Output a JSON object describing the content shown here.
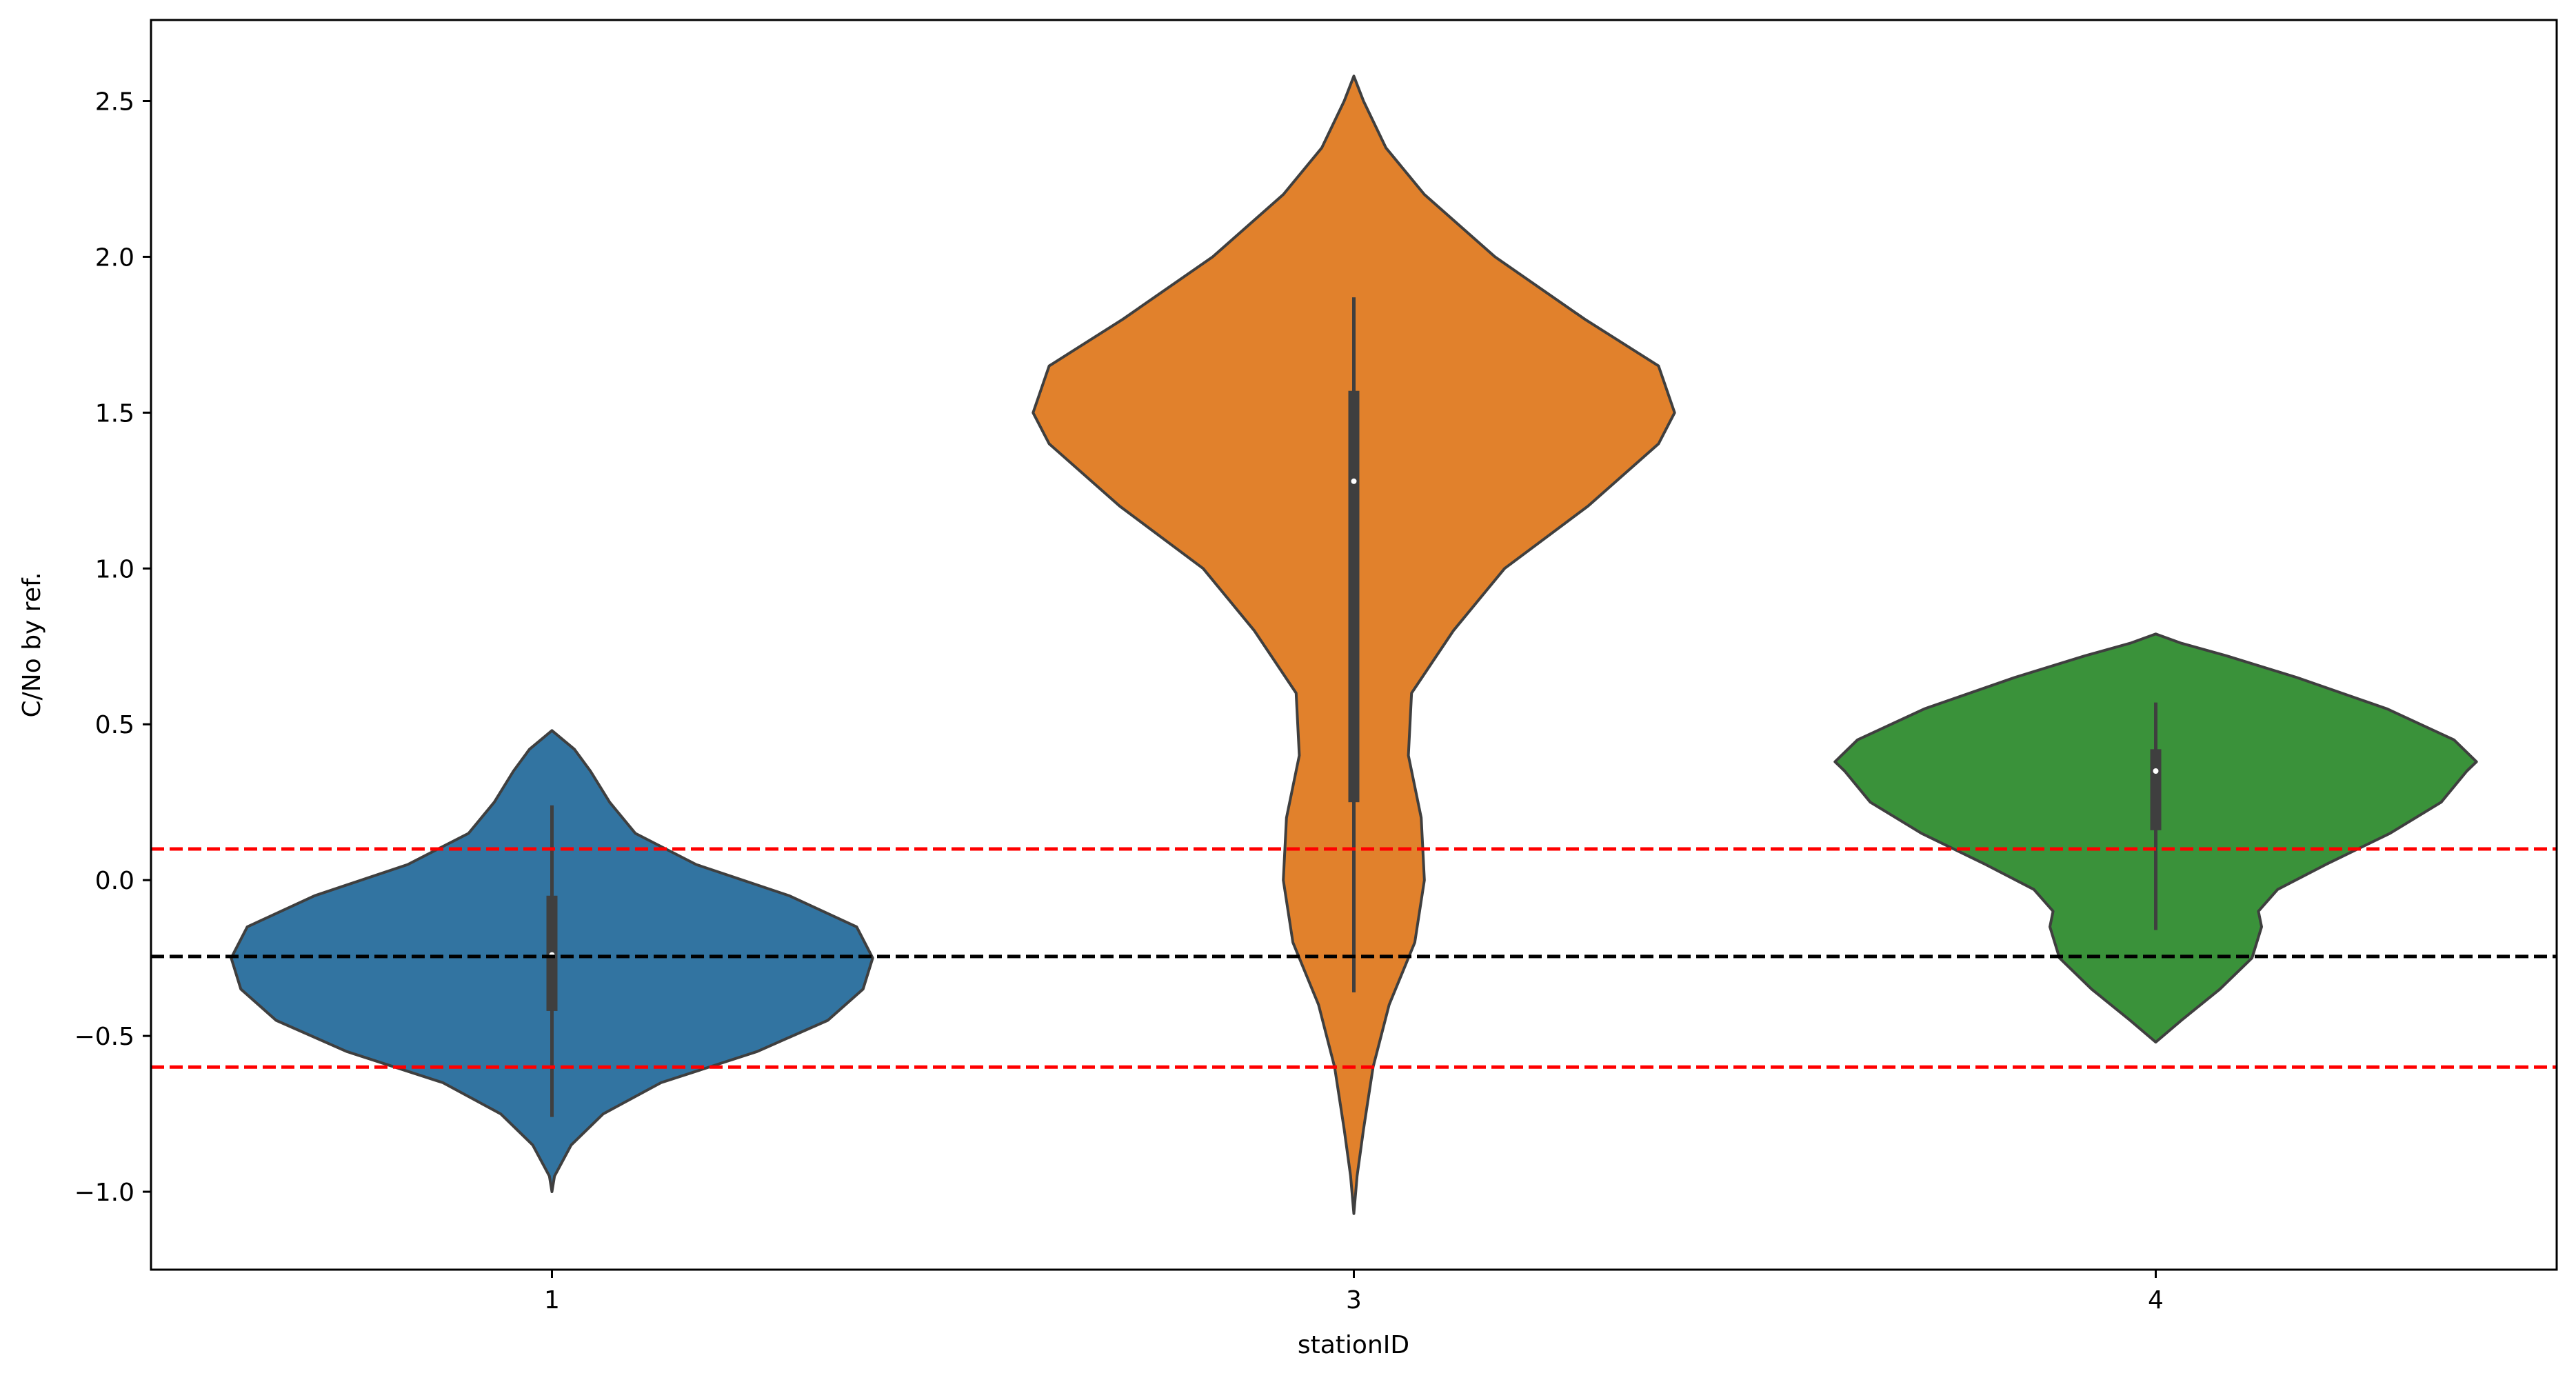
{
  "chart_data": {
    "type": "violin",
    "title": "",
    "xlabel": "stationID",
    "ylabel": "C/No by ref.",
    "categories": [
      "1",
      "3",
      "4"
    ],
    "ylim": [
      -1.25,
      2.76
    ],
    "yticks": [
      {
        "value": 2.5,
        "label": "2.5"
      },
      {
        "value": 2.0,
        "label": "2.0"
      },
      {
        "value": 1.5,
        "label": "1.5"
      },
      {
        "value": 1.0,
        "label": "1.0"
      },
      {
        "value": 0.5,
        "label": "0.5"
      },
      {
        "value": 0.0,
        "label": "0.0"
      },
      {
        "value": -0.5,
        "label": "−0.5"
      },
      {
        "value": -1.0,
        "label": "−1.0"
      }
    ],
    "grid": false,
    "reference_lines": [
      {
        "y": 0.1,
        "color": "#ff0000",
        "style": "dashed"
      },
      {
        "y": -0.245,
        "color": "#000000",
        "style": "dashed"
      },
      {
        "y": -0.6,
        "color": "#ff0000",
        "style": "dashed"
      }
    ],
    "series": [
      {
        "category": "1",
        "color": "#3274a1",
        "min": -1.0,
        "max": 0.48,
        "whisker_low": -0.76,
        "whisker_high": 0.24,
        "q1": -0.42,
        "median": -0.24,
        "q3": -0.05,
        "density": [
          [
            -1.0,
            0.0
          ],
          [
            -0.95,
            0.008
          ],
          [
            -0.85,
            0.06
          ],
          [
            -0.75,
            0.16
          ],
          [
            -0.65,
            0.34
          ],
          [
            -0.55,
            0.64
          ],
          [
            -0.45,
            0.86
          ],
          [
            -0.35,
            0.97
          ],
          [
            -0.25,
            1.0
          ],
          [
            -0.15,
            0.95
          ],
          [
            -0.05,
            0.74
          ],
          [
            0.05,
            0.45
          ],
          [
            0.15,
            0.26
          ],
          [
            0.25,
            0.18
          ],
          [
            0.35,
            0.12
          ],
          [
            0.42,
            0.07
          ],
          [
            0.48,
            0.0
          ]
        ]
      },
      {
        "category": "3",
        "color": "#e1812c",
        "min": -1.07,
        "max": 2.58,
        "whisker_low": -0.36,
        "whisker_high": 1.87,
        "q1": 0.25,
        "median": 1.28,
        "q3": 1.57,
        "density": [
          [
            -1.07,
            0.0
          ],
          [
            -0.95,
            0.01
          ],
          [
            -0.8,
            0.03
          ],
          [
            -0.6,
            0.06
          ],
          [
            -0.4,
            0.11
          ],
          [
            -0.2,
            0.19
          ],
          [
            0.0,
            0.22
          ],
          [
            0.2,
            0.21
          ],
          [
            0.4,
            0.17
          ],
          [
            0.6,
            0.18
          ],
          [
            0.8,
            0.31
          ],
          [
            1.0,
            0.47
          ],
          [
            1.2,
            0.73
          ],
          [
            1.4,
            0.95
          ],
          [
            1.5,
            1.0
          ],
          [
            1.65,
            0.95
          ],
          [
            1.8,
            0.72
          ],
          [
            2.0,
            0.44
          ],
          [
            2.2,
            0.22
          ],
          [
            2.35,
            0.1
          ],
          [
            2.5,
            0.03
          ],
          [
            2.58,
            0.0
          ]
        ]
      },
      {
        "category": "4",
        "color": "#3a923a",
        "min": -0.52,
        "max": 0.79,
        "whisker_low": -0.16,
        "whisker_high": 0.57,
        "q1": 0.16,
        "median": 0.35,
        "q3": 0.42,
        "density": [
          [
            -0.52,
            0.0
          ],
          [
            -0.45,
            0.08
          ],
          [
            -0.35,
            0.2
          ],
          [
            -0.25,
            0.3
          ],
          [
            -0.15,
            0.33
          ],
          [
            -0.1,
            0.32
          ],
          [
            -0.03,
            0.38
          ],
          [
            0.05,
            0.53
          ],
          [
            0.15,
            0.73
          ],
          [
            0.25,
            0.89
          ],
          [
            0.35,
            0.97
          ],
          [
            0.38,
            1.0
          ],
          [
            0.45,
            0.93
          ],
          [
            0.55,
            0.72
          ],
          [
            0.65,
            0.44
          ],
          [
            0.72,
            0.22
          ],
          [
            0.76,
            0.08
          ],
          [
            0.79,
            0.0
          ]
        ]
      }
    ]
  }
}
